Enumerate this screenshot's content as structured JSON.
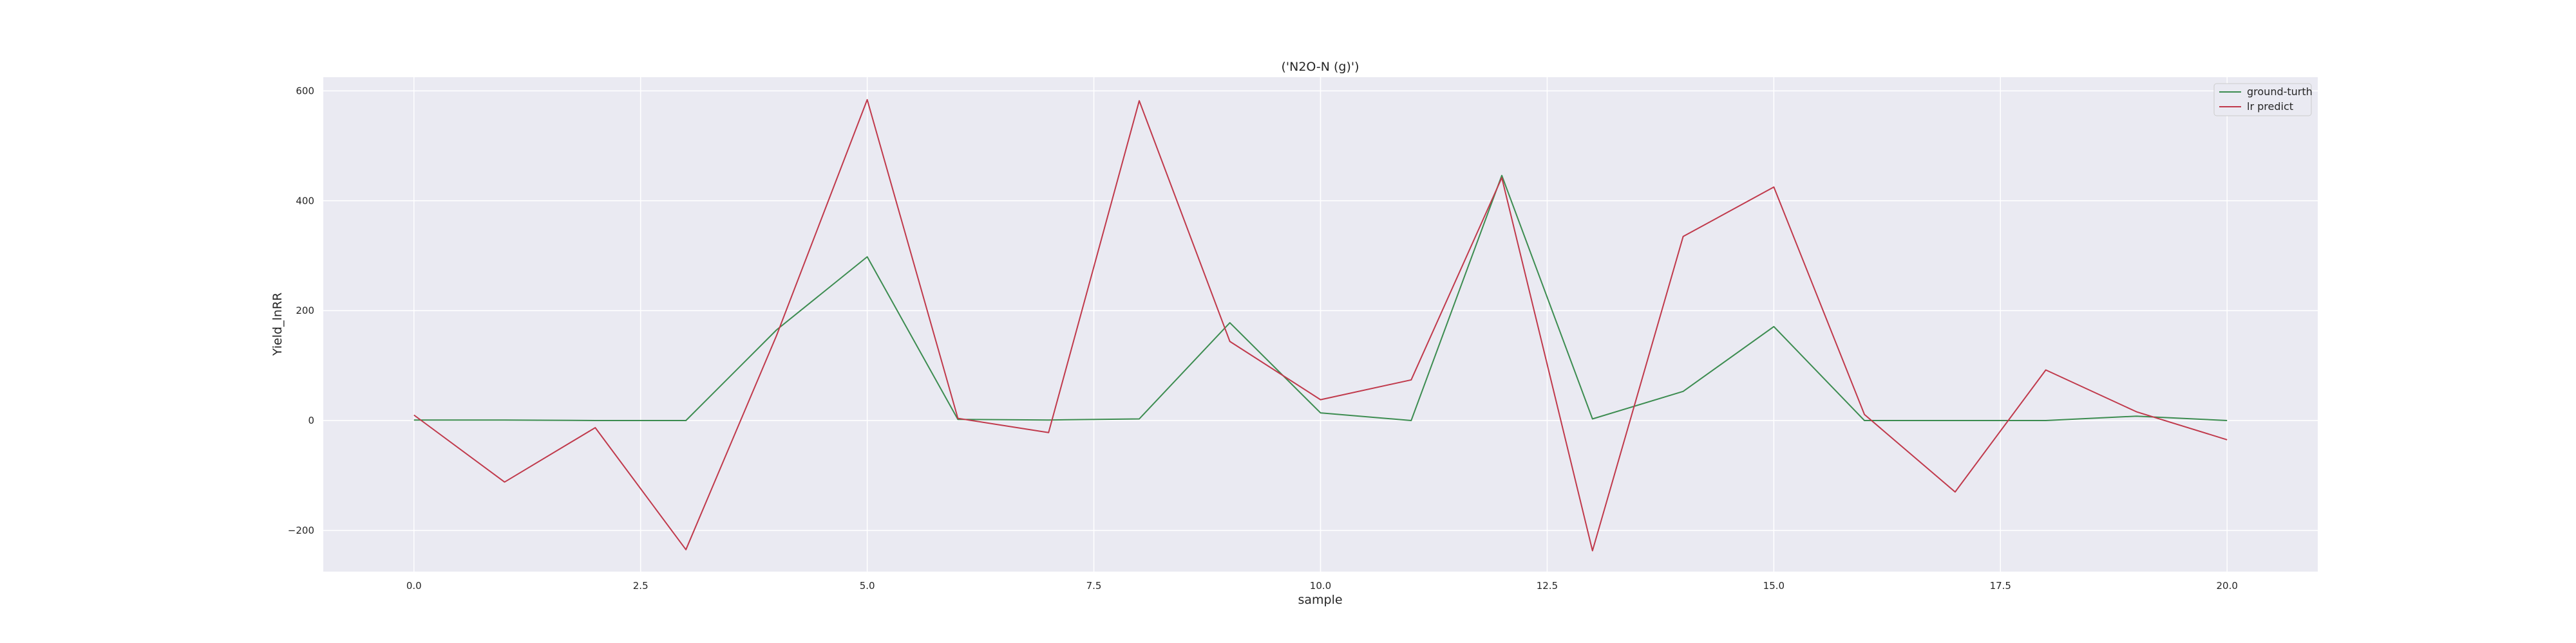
{
  "chart_data": {
    "type": "line",
    "title": "('N2O-N (g)')",
    "xlabel": "sample",
    "ylabel": "Yield_lnRR",
    "xlim": [
      -1,
      21
    ],
    "ylim": [
      -275,
      625
    ],
    "xticks": [
      0.0,
      2.5,
      5.0,
      7.5,
      10.0,
      12.5,
      15.0,
      17.5,
      20.0
    ],
    "xtick_labels": [
      "0.0",
      "2.5",
      "5.0",
      "7.5",
      "10.0",
      "12.5",
      "15.0",
      "17.5",
      "20.0"
    ],
    "yticks": [
      -200,
      0,
      200,
      400,
      600
    ],
    "ytick_labels": [
      "−200",
      "0",
      "200",
      "400",
      "600"
    ],
    "grid": true,
    "legend_position": "top-right",
    "x": [
      0,
      1,
      2,
      3,
      4,
      5,
      6,
      7,
      8,
      9,
      10,
      11,
      12,
      13,
      14,
      15,
      16,
      17,
      18,
      19,
      20
    ],
    "series": [
      {
        "name": "ground-turth",
        "color": "#3c8c50",
        "values": [
          1,
          1,
          0,
          0,
          165,
          298,
          2,
          1,
          3,
          178,
          14,
          0,
          446,
          3,
          53,
          171,
          0,
          0,
          0,
          8,
          0
        ]
      },
      {
        "name": "lr predict",
        "color": "#c0394b",
        "values": [
          10,
          -112,
          -13,
          -235,
          155,
          584,
          4,
          -22,
          582,
          144,
          38,
          74,
          442,
          -237,
          335,
          425,
          11,
          -130,
          92,
          16,
          -35
        ]
      }
    ]
  }
}
